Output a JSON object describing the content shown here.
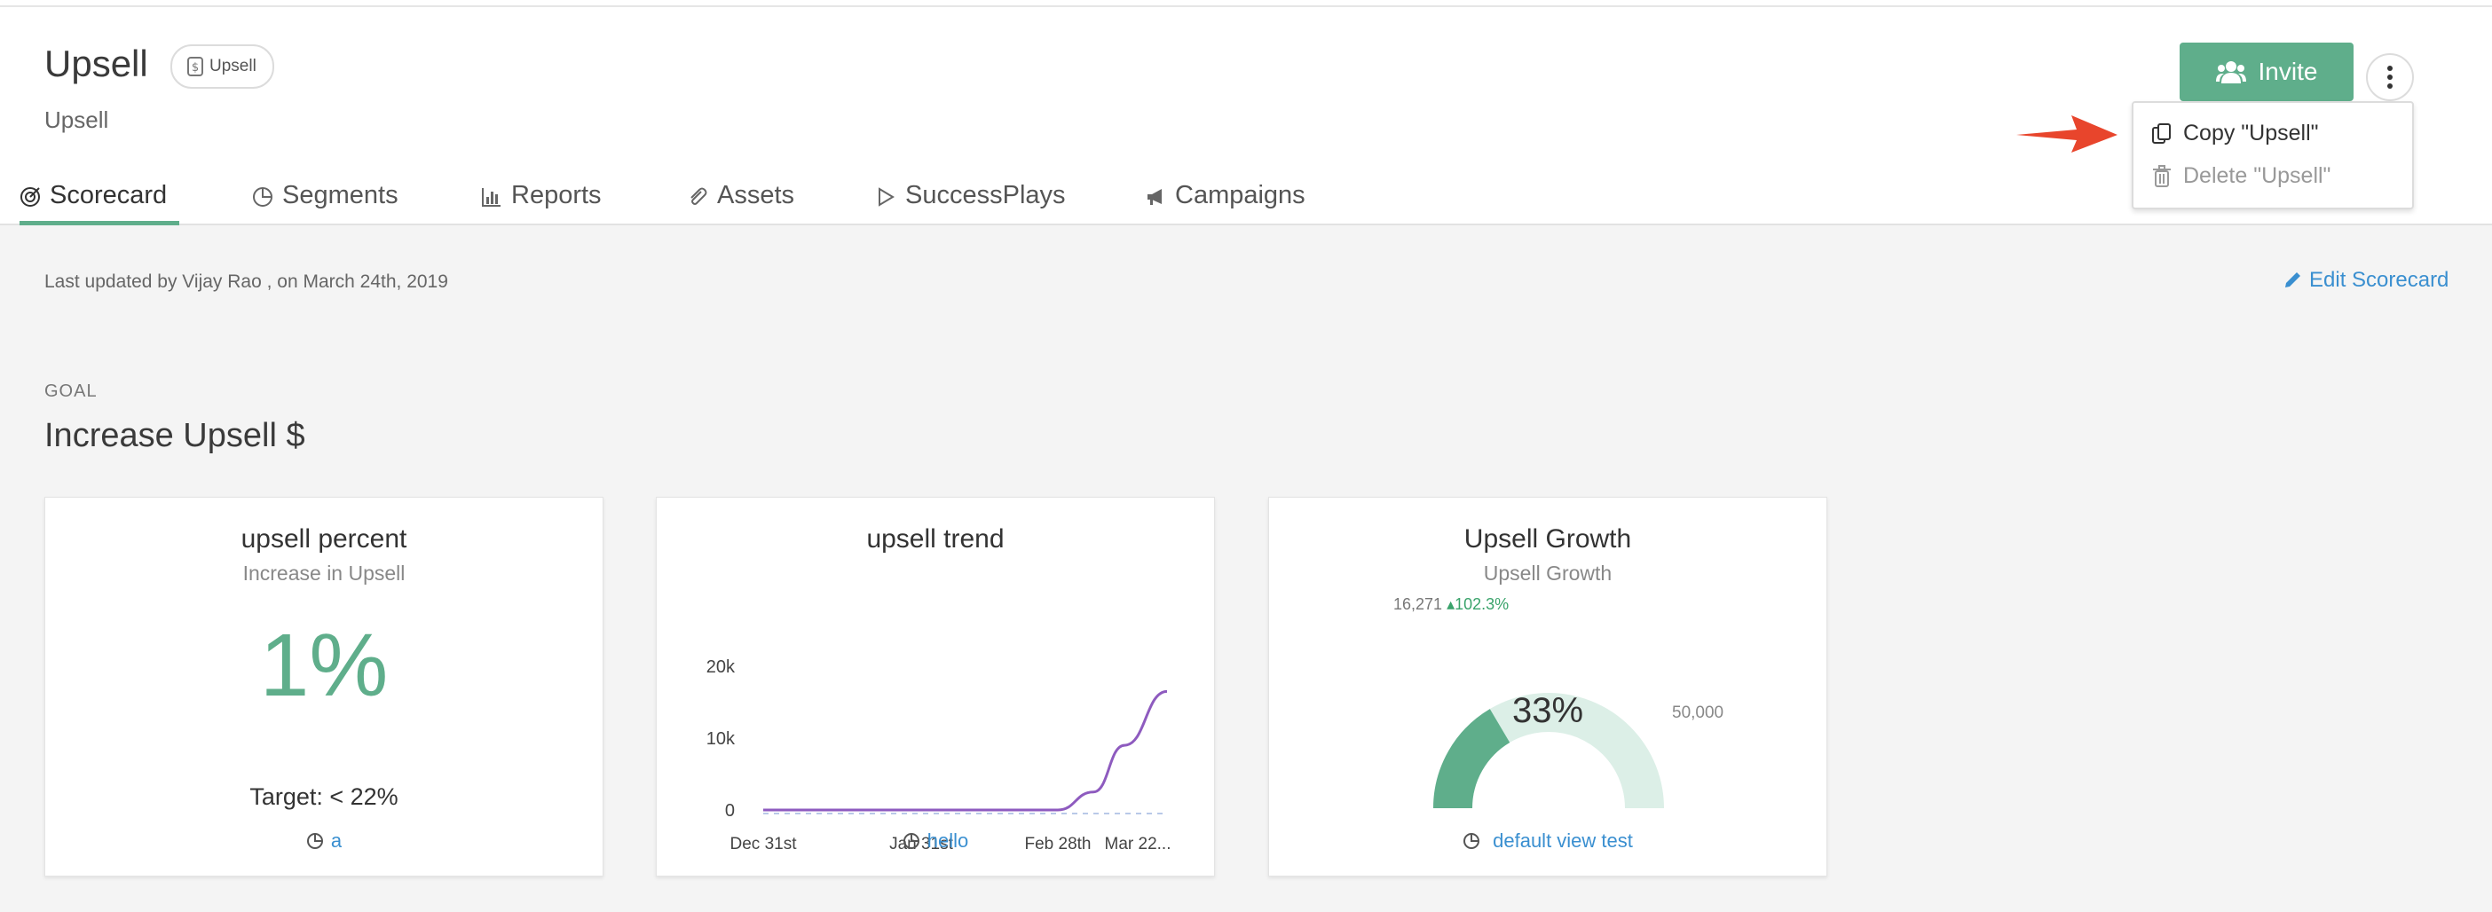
{
  "header": {
    "title": "Upsell",
    "badge": "Upsell",
    "subtitle": "Upsell",
    "invite_label": "Invite"
  },
  "tabs": [
    {
      "label": "Scorecard",
      "icon": "scorecard-icon",
      "active": true
    },
    {
      "label": "Segments",
      "icon": "pie-icon"
    },
    {
      "label": "Reports",
      "icon": "bar-chart-icon"
    },
    {
      "label": "Assets",
      "icon": "paperclip-icon"
    },
    {
      "label": "SuccessPlays",
      "icon": "play-icon"
    },
    {
      "label": "Campaigns",
      "icon": "megaphone-icon"
    }
  ],
  "menu": {
    "copy_label": "Copy \"Upsell\"",
    "delete_label": "Delete \"Upsell\""
  },
  "meta": {
    "updated_text": "Last updated by Vijay Rao , on March 24th, 2019",
    "edit_label": "Edit Scorecard"
  },
  "goal": {
    "label": "GOAL",
    "title": "Increase Upsell $"
  },
  "cards": {
    "percent": {
      "title": "upsell percent",
      "subtitle": "Increase in Upsell",
      "value": "1%",
      "target": "Target: < 22%",
      "link": "a"
    },
    "trend": {
      "title": "upsell trend",
      "link": "hello"
    },
    "growth": {
      "title": "Upsell Growth",
      "subtitle": "Upsell Growth",
      "current": "16,271",
      "change": "▴102.3%",
      "percent_label": "33%",
      "max_label": "50,000",
      "link": "default view test",
      "fill_fraction": 0.33
    }
  },
  "colors": {
    "accent": "#5fae8b",
    "link": "#3a8fd0",
    "trend_line": "#8e5bbf",
    "gauge_track": "#dcefe7",
    "arrow": "#e8452c"
  },
  "chart_data": {
    "type": "line",
    "title": "upsell trend",
    "x_ticks": [
      "Dec 31st",
      "Jan 31st",
      "Feb 28th",
      "Mar 22..."
    ],
    "y_ticks": [
      "0",
      "10k",
      "20k"
    ],
    "ylim": [
      0,
      20000
    ],
    "series": [
      {
        "x": [
          "Dec 31st",
          "Jan 15th",
          "Jan 31st",
          "Feb 15th",
          "Feb 28th",
          "Mar 8th",
          "Mar 15th",
          "Mar 22nd"
        ],
        "values": [
          0,
          0,
          0,
          0,
          0,
          2500,
          9000,
          16500
        ]
      }
    ]
  }
}
